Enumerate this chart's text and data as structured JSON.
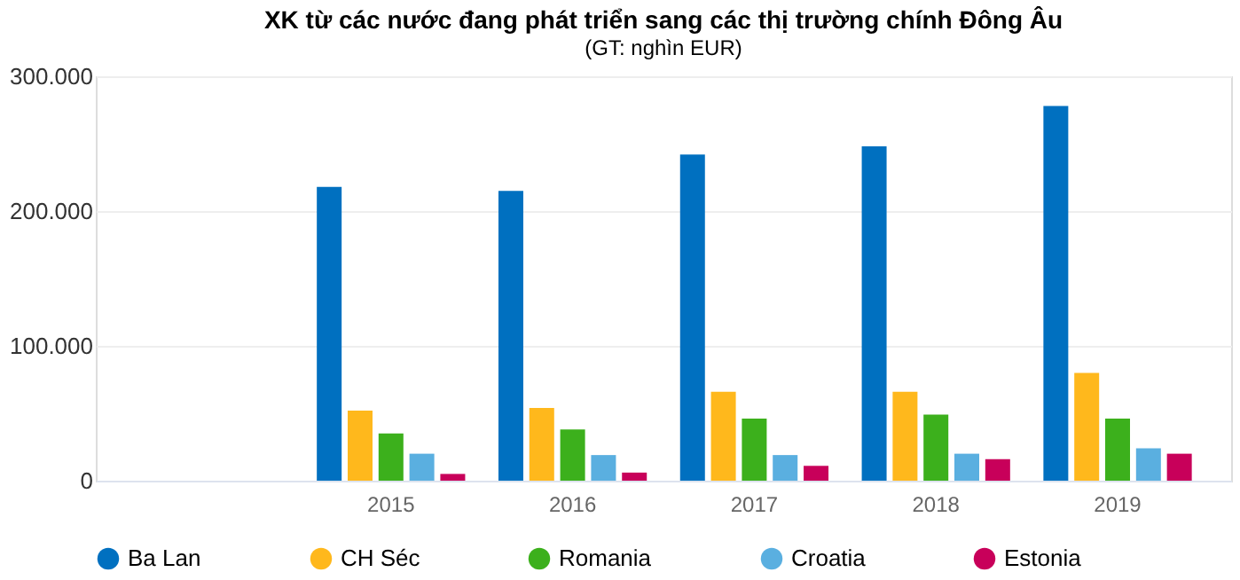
{
  "chart_data": {
    "type": "bar",
    "title": "XK từ các nước đang phát triển sang các thị trường chính Đông Âu",
    "subtitle": "(GT: nghìn EUR)",
    "categories": [
      null,
      "2015",
      "2016",
      "2017",
      "2018",
      "2019"
    ],
    "series": [
      {
        "name": "Ba Lan",
        "color": "#0070c0",
        "values": [
          null,
          218000,
          215000,
          242000,
          248000,
          278000
        ]
      },
      {
        "name": "CH Séc",
        "color": "#ffb81c",
        "values": [
          null,
          52000,
          54000,
          66000,
          66000,
          80000
        ]
      },
      {
        "name": "Romania",
        "color": "#3cb01c",
        "values": [
          null,
          35000,
          38000,
          46000,
          49000,
          46000
        ]
      },
      {
        "name": "Croatia",
        "color": "#5aafe0",
        "values": [
          null,
          20000,
          19000,
          19000,
          20000,
          24000
        ]
      },
      {
        "name": "Estonia",
        "color": "#c8005a",
        "values": [
          null,
          5000,
          6000,
          11000,
          16000,
          20000
        ]
      }
    ],
    "ylim": [
      0,
      300000
    ],
    "yticks": [
      {
        "value": 0,
        "label": "0"
      },
      {
        "value": 100000,
        "label": "100.000"
      },
      {
        "value": 200000,
        "label": "200.000"
      },
      {
        "value": 300000,
        "label": "300.000"
      }
    ],
    "grid": "y",
    "legend": "bottom"
  }
}
